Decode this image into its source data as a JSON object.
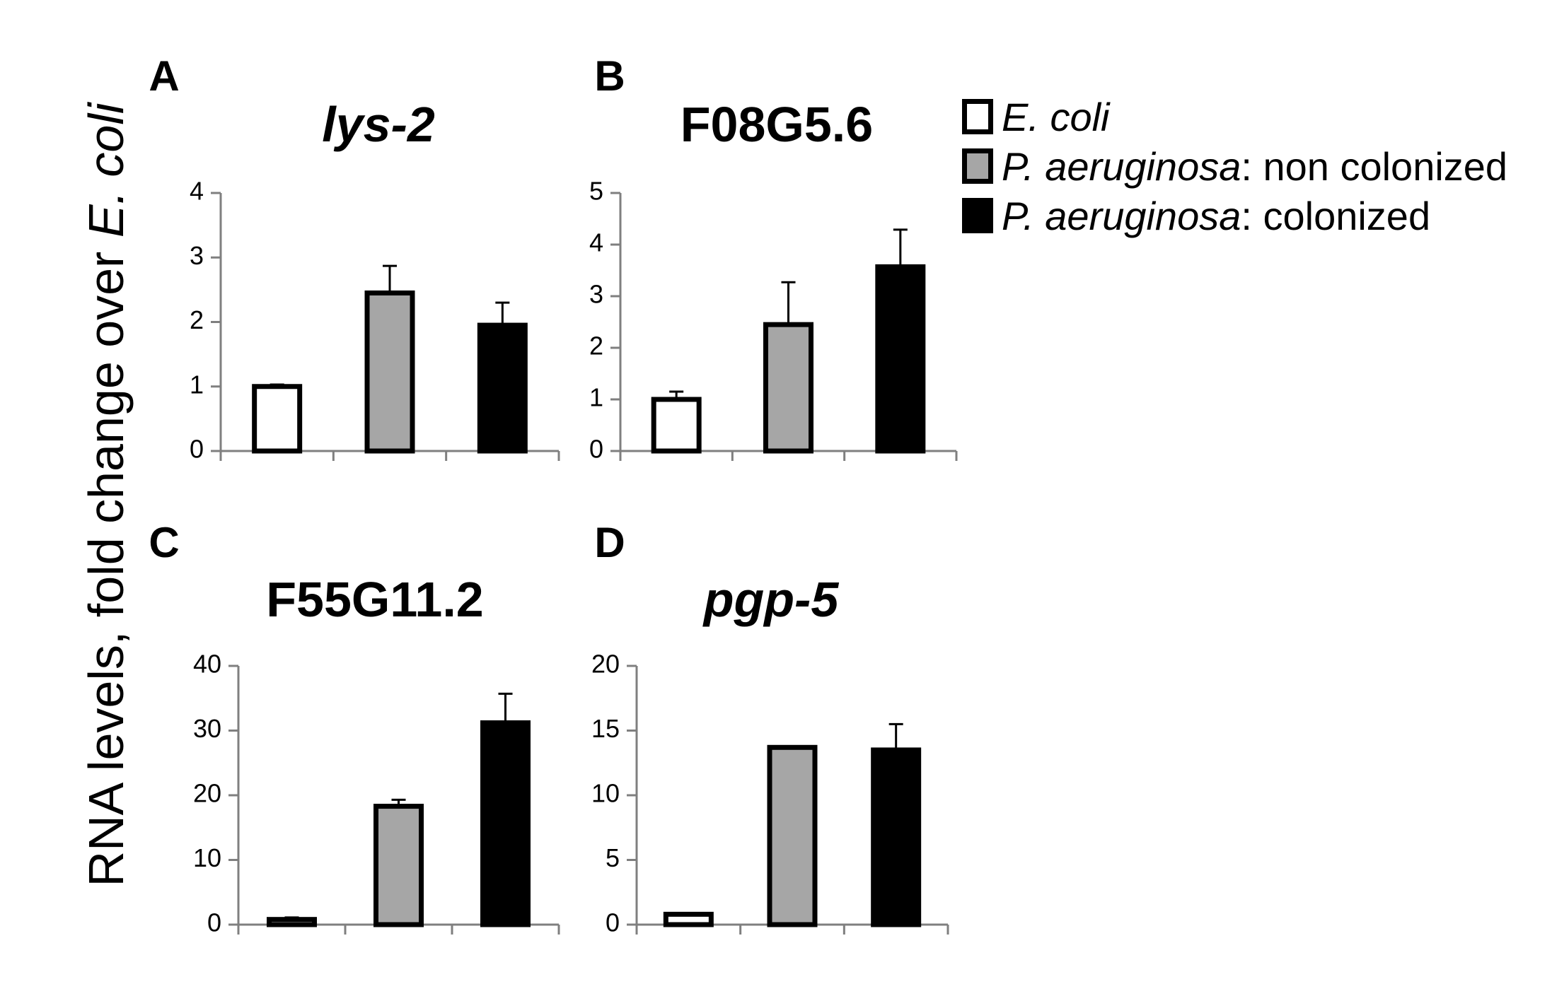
{
  "y_axis_label": {
    "prefix": "RNA levels, fold change over ",
    "italic": "E. coli"
  },
  "legend": [
    {
      "italic": "E. coli",
      "rest": "",
      "color": "#ffffff"
    },
    {
      "italic": "P. aeruginosa",
      "rest": ": non colonized",
      "color": "#a6a6a6"
    },
    {
      "italic": "P. aeruginosa",
      "rest": ": colonized",
      "color": "#000000"
    }
  ],
  "chart_data": [
    {
      "type": "bar",
      "panel": "A",
      "title": "lys-2",
      "title_italic": true,
      "categories": [
        "E. coli",
        "P. aeruginosa: non colonized",
        "P. aeruginosa: colonized"
      ],
      "values": [
        1.0,
        2.45,
        1.95
      ],
      "errors": [
        0.03,
        0.42,
        0.35
      ],
      "ylim": [
        0,
        4
      ],
      "yticks": [
        "0",
        "1",
        "2",
        "3",
        "4"
      ],
      "colors": [
        "#ffffff",
        "#a6a6a6",
        "#000000"
      ]
    },
    {
      "type": "bar",
      "panel": "B",
      "title": "F08G5.6",
      "title_italic": false,
      "categories": [
        "E. coli",
        "P. aeruginosa: non colonized",
        "P. aeruginosa: colonized"
      ],
      "values": [
        1.0,
        2.45,
        3.57
      ],
      "errors": [
        0.15,
        0.82,
        0.72
      ],
      "ylim": [
        0,
        5
      ],
      "yticks": [
        "0",
        "1",
        "2",
        "3",
        "4",
        "5"
      ],
      "colors": [
        "#ffffff",
        "#a6a6a6",
        "#000000"
      ]
    },
    {
      "type": "bar",
      "panel": "C",
      "title": "F55G11.2",
      "title_italic": false,
      "categories": [
        "E. coli",
        "P. aeruginosa: non colonized",
        "P. aeruginosa: colonized"
      ],
      "values": [
        0.8,
        18.3,
        31.2
      ],
      "errors": [
        0.3,
        1.0,
        4.5
      ],
      "ylim": [
        0,
        40
      ],
      "yticks": [
        "0",
        "10",
        "20",
        "30",
        "40"
      ],
      "colors": [
        "#ffffff",
        "#a6a6a6",
        "#000000"
      ]
    },
    {
      "type": "bar",
      "panel": "D",
      "title": "pgp-5",
      "title_italic": true,
      "categories": [
        "E. coli",
        "P. aeruginosa: non colonized",
        "P. aeruginosa: colonized"
      ],
      "values": [
        0.8,
        13.7,
        13.5
      ],
      "errors": [
        0.0,
        0.0,
        2.0
      ],
      "ylim": [
        0,
        20
      ],
      "yticks": [
        "0",
        "5",
        "10",
        "15",
        "20"
      ],
      "colors": [
        "#ffffff",
        "#a6a6a6",
        "#000000"
      ]
    }
  ]
}
